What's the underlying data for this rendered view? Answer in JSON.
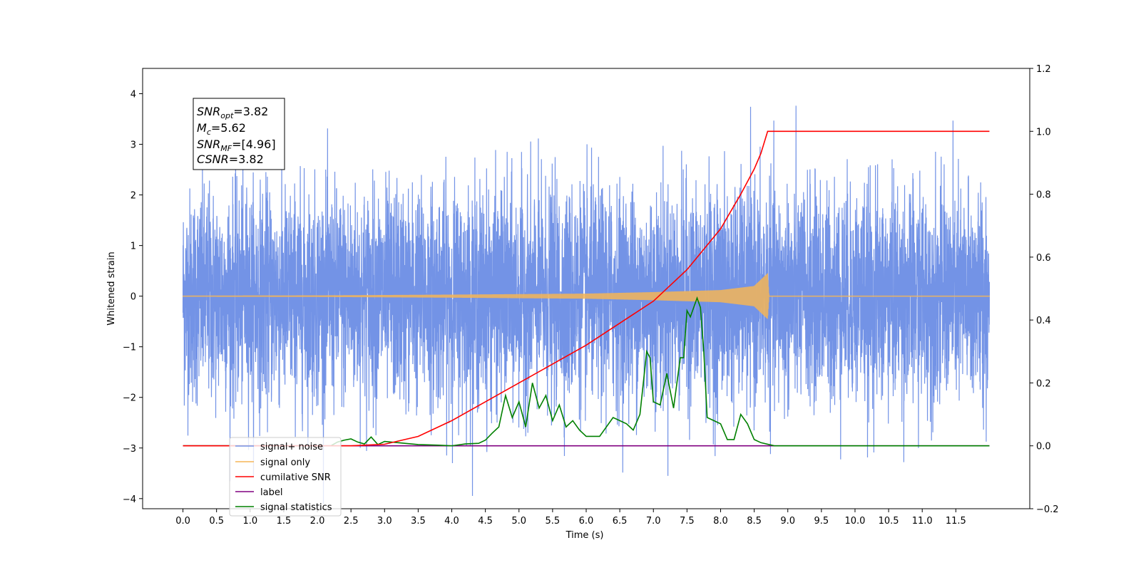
{
  "chart_data": {
    "type": "line",
    "xlabel": "Time (s)",
    "ylabel": "Whitened strain",
    "xlim": [
      -0.6,
      12.6
    ],
    "ylim": [
      -4.2,
      4.5
    ],
    "ylim_right": [
      -0.2,
      1.2
    ],
    "grid": false,
    "legend_position": "lower-left",
    "x_ticks": [
      "0.0",
      "0.5",
      "1.0",
      "1.5",
      "2.0",
      "2.5",
      "3.0",
      "3.5",
      "4.0",
      "4.5",
      "5.0",
      "5.5",
      "6.0",
      "6.5",
      "7.0",
      "7.5",
      "8.0",
      "8.5",
      "9.0",
      "9.5",
      "10.0",
      "10.5",
      "11.0",
      "11.5"
    ],
    "y_ticks": [
      "4",
      "3",
      "2",
      "1",
      "0",
      "−1",
      "−2",
      "−3",
      "−4"
    ],
    "y_ticks_right": [
      "1.2",
      "1.0",
      "0.8",
      "0.6",
      "0.4",
      "0.2",
      "0.0",
      "−0.2"
    ],
    "annotation": {
      "snr_opt_label": "SNR",
      "snr_opt_sub": "opt",
      "snr_opt_value": "=3.82",
      "mc_label": "M",
      "mc_sub": "c",
      "mc_value": "=5.62",
      "snr_mf_label": "SNR",
      "snr_mf_sub": "MF",
      "snr_mf_value": "=[4.96]",
      "csnr_label": "CSNR",
      "csnr_value": "=3.82"
    },
    "series": [
      {
        "name": "signal+ noise",
        "color": "#7393e6",
        "axis": "left",
        "x_range": [
          0,
          12
        ],
        "amplitude_max": 4.1,
        "description_values": "noise"
      },
      {
        "name": "signal only",
        "color": "#f5b556",
        "axis": "left",
        "x_range": [
          0,
          12
        ],
        "envelope_x": [
          0,
          2,
          4,
          6,
          7,
          8,
          8.5,
          8.7,
          8.72,
          12
        ],
        "envelope_y": [
          0.01,
          0.015,
          0.03,
          0.05,
          0.08,
          0.12,
          0.2,
          0.45,
          0.01,
          0.01
        ]
      },
      {
        "name": "cumilative SNR",
        "color": "#ff0000",
        "axis": "right",
        "x": [
          0,
          2.5,
          3.0,
          3.5,
          4.0,
          4.5,
          5.0,
          5.5,
          6.0,
          6.5,
          7.0,
          7.5,
          8.0,
          8.3,
          8.5,
          8.6,
          8.7,
          12
        ],
        "values": [
          0,
          0,
          0.005,
          0.03,
          0.08,
          0.14,
          0.2,
          0.26,
          0.32,
          0.39,
          0.46,
          0.56,
          0.69,
          0.8,
          0.88,
          0.93,
          1.0,
          1.0
        ]
      },
      {
        "name": "label",
        "color": "#800080",
        "axis": "right",
        "x": [
          0,
          12
        ],
        "values": [
          0,
          0
        ]
      },
      {
        "name": "signal statistics",
        "color": "#008000",
        "axis": "right",
        "x": [
          0,
          2.2,
          2.3,
          2.4,
          2.5,
          2.6,
          2.7,
          2.8,
          2.9,
          3.0,
          3.2,
          3.5,
          3.8,
          4.0,
          4.2,
          4.4,
          4.5,
          4.6,
          4.7,
          4.8,
          4.9,
          5.0,
          5.1,
          5.2,
          5.3,
          5.4,
          5.5,
          5.6,
          5.7,
          5.8,
          5.9,
          6.0,
          6.2,
          6.4,
          6.5,
          6.6,
          6.7,
          6.8,
          6.9,
          6.95,
          7.0,
          7.1,
          7.2,
          7.3,
          7.4,
          7.45,
          7.5,
          7.55,
          7.6,
          7.65,
          7.7,
          7.75,
          7.8,
          7.9,
          8.0,
          8.1,
          8.2,
          8.3,
          8.4,
          8.5,
          8.6,
          8.8,
          9.0,
          12
        ],
        "values": [
          0,
          0,
          0.012,
          0.018,
          0.022,
          0.012,
          0.006,
          0.028,
          0.004,
          0.014,
          0.01,
          0.004,
          0.002,
          0.0,
          0.006,
          0.008,
          0.018,
          0.04,
          0.06,
          0.16,
          0.09,
          0.14,
          0.06,
          0.2,
          0.12,
          0.16,
          0.08,
          0.13,
          0.06,
          0.08,
          0.05,
          0.03,
          0.03,
          0.09,
          0.08,
          0.07,
          0.05,
          0.1,
          0.3,
          0.28,
          0.14,
          0.13,
          0.23,
          0.12,
          0.28,
          0.28,
          0.43,
          0.41,
          0.44,
          0.47,
          0.44,
          0.3,
          0.09,
          0.08,
          0.07,
          0.02,
          0.02,
          0.1,
          0.07,
          0.02,
          0.01,
          0.0,
          0.0,
          0.0
        ]
      }
    ]
  }
}
